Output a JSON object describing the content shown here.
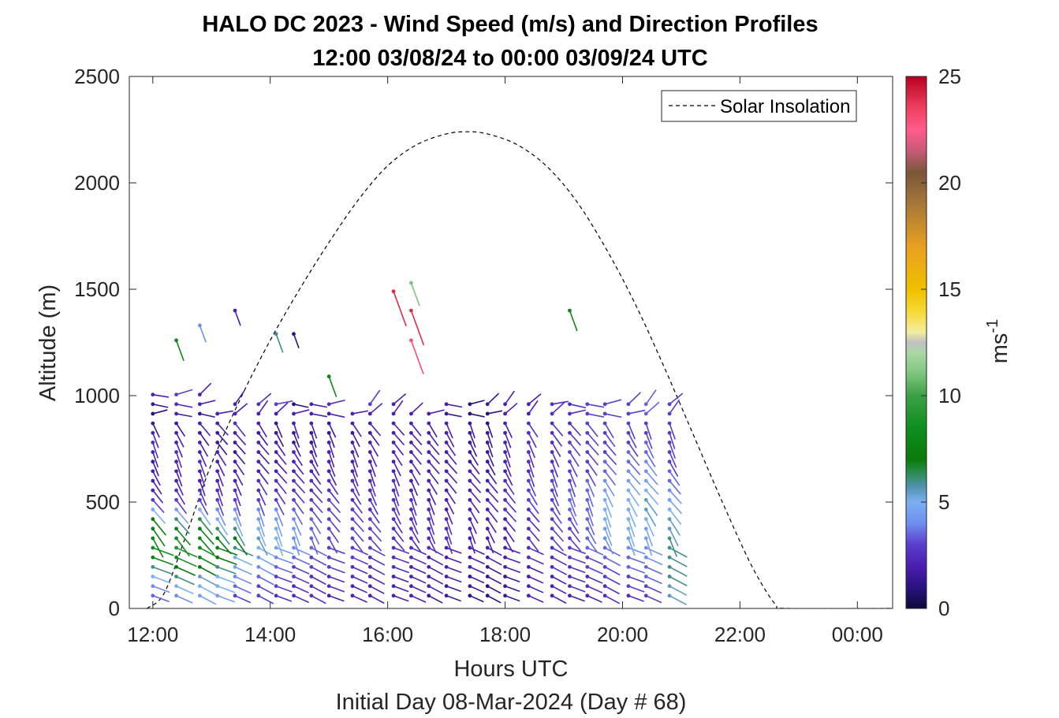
{
  "chart_data": {
    "type": "wind-barb-profile",
    "title_line1": "HALO DC 2023 - Wind Speed (m/s) and Direction Profiles",
    "title_line2": "12:00 03/08/24 to 00:00 03/09/24  UTC",
    "xlabel": "Hours UTC",
    "xlabel2": "Initial Day 08-Mar-2024 (Day # 68)",
    "ylabel": "Altitude (m)",
    "xlim": [
      11.6,
      24.6
    ],
    "ylim": [
      0,
      2500
    ],
    "x_ticks": [
      12,
      14,
      16,
      18,
      20,
      22,
      24
    ],
    "x_tick_labels": [
      "12:00",
      "14:00",
      "16:00",
      "18:00",
      "20:00",
      "22:00",
      "00:00"
    ],
    "y_ticks": [
      0,
      500,
      1000,
      1500,
      2000,
      2500
    ],
    "y_tick_labels": [
      "0",
      "500",
      "1000",
      "1500",
      "2000",
      "2500"
    ],
    "colorbar": {
      "label": "ms",
      "label_superscript": "-1",
      "range": [
        0,
        25
      ],
      "ticks": [
        0,
        5,
        10,
        15,
        20,
        25
      ],
      "tick_labels": [
        "0",
        "5",
        "10",
        "15",
        "20",
        "25"
      ],
      "stops": [
        [
          0,
          "#0b0b3a"
        ],
        [
          1,
          "#2a1280"
        ],
        [
          2,
          "#4b1fb0"
        ],
        [
          3,
          "#5b3dcc"
        ],
        [
          4,
          "#6f8ff0"
        ],
        [
          5,
          "#7ab0f0"
        ],
        [
          5.8,
          "#4d8fa8"
        ],
        [
          6.3,
          "#2e8f5a"
        ],
        [
          7,
          "#0a7a0a"
        ],
        [
          8.5,
          "#0f8f1f"
        ],
        [
          10,
          "#3aa045"
        ],
        [
          11,
          "#7dc47d"
        ],
        [
          12,
          "#a9d8a4"
        ],
        [
          12.5,
          "#c0c0c0"
        ],
        [
          13,
          "#f5eda0"
        ],
        [
          14,
          "#f5d830"
        ],
        [
          15,
          "#f0c000"
        ],
        [
          17,
          "#e8a020"
        ],
        [
          19,
          "#a67838"
        ],
        [
          20.5,
          "#7a5638"
        ],
        [
          21.5,
          "#c85a78"
        ],
        [
          22.5,
          "#ff5c8a"
        ],
        [
          23.5,
          "#f04060"
        ],
        [
          25,
          "#b80020"
        ]
      ]
    },
    "legend": {
      "label": "Solar Insolation",
      "placement": "top-right"
    },
    "solar_insolation": {
      "x": [
        11.9,
        12.2,
        12.6,
        13.0,
        13.5,
        14.0,
        14.5,
        15.0,
        15.5,
        16.0,
        16.5,
        17.0,
        17.35,
        17.7,
        18.2,
        18.7,
        19.2,
        19.7,
        20.2,
        20.7,
        21.2,
        21.7,
        22.2,
        22.6,
        22.8,
        24.6
      ],
      "y": [
        0,
        75,
        370,
        680,
        990,
        1260,
        1500,
        1720,
        1920,
        2080,
        2180,
        2230,
        2240,
        2230,
        2180,
        2080,
        1920,
        1700,
        1440,
        1140,
        820,
        500,
        200,
        20,
        0,
        0
      ]
    },
    "profiles": [
      {
        "time": 12.0,
        "speeds": [
          3.5,
          4,
          5,
          6,
          8,
          8.5,
          8,
          7.5,
          7,
          5,
          3,
          2,
          2,
          2,
          1.5,
          2,
          2.5,
          2,
          1.5,
          1,
          1.5,
          2
        ],
        "dir_offset": 250
      },
      {
        "time": 12.4,
        "speeds": [
          4,
          5,
          6,
          7,
          8.5,
          9,
          8.5,
          8,
          6,
          4.5,
          3,
          2.5,
          2,
          2,
          2,
          2.5,
          2,
          2,
          1.5,
          2,
          2.5,
          3
        ],
        "dir_offset": 245
      },
      {
        "time": 12.8,
        "speeds": [
          4.5,
          5,
          5.5,
          7,
          8,
          8.5,
          8,
          7.5,
          6.5,
          5,
          3,
          2.5,
          2,
          2,
          2.5,
          2,
          2,
          1.5,
          2,
          1.5,
          2,
          2
        ],
        "dir_offset": 240
      },
      {
        "time": 13.1,
        "speeds": [
          4.5,
          5,
          5,
          6,
          7,
          7.5,
          7,
          6,
          5,
          4,
          3,
          2.5,
          2,
          2,
          2,
          2,
          1.5,
          1.5,
          2,
          2
        ],
        "dir_offset": 235
      },
      {
        "time": 13.4,
        "speeds": [
          3,
          3.5,
          4,
          4.5,
          5,
          6,
          7,
          6,
          5,
          4,
          3,
          2.5,
          2,
          2,
          2,
          1.5,
          1.5,
          2,
          2.5,
          2,
          2
        ],
        "dir_offset": 230
      },
      {
        "time": 13.8,
        "speeds": [
          3,
          3,
          3.5,
          4,
          4.5,
          5,
          5.5,
          5,
          4.5,
          4,
          3,
          2.5,
          2.5,
          2,
          2,
          2,
          2,
          1.5,
          2,
          2,
          2.5
        ],
        "dir_offset": 225
      },
      {
        "time": 14.1,
        "speeds": [
          2.5,
          3,
          3,
          3.5,
          4,
          4.5,
          5,
          5,
          4.5,
          4,
          3,
          2.5,
          2.5,
          2,
          2,
          2,
          2,
          1.5,
          1.5,
          2,
          3
        ],
        "dir_offset": 220
      },
      {
        "time": 14.4,
        "speeds": [
          2.5,
          2.5,
          3,
          3,
          3.5,
          4,
          4,
          4.5,
          4,
          3.5,
          3,
          2.5,
          2.5,
          2,
          2,
          2,
          1.5,
          1.5,
          2,
          2,
          1
        ],
        "dir_offset": 215
      },
      {
        "time": 14.7,
        "speeds": [
          2.5,
          2.5,
          2.5,
          3,
          3,
          3.5,
          3.5,
          3.5,
          3.5,
          3,
          3,
          2.5,
          2.5,
          2,
          2,
          2,
          1.5,
          1.5,
          2,
          2,
          2
        ],
        "dir_offset": 210
      },
      {
        "time": 15.0,
        "speeds": [
          2,
          2.5,
          2.5,
          3,
          3,
          3,
          3,
          3,
          3,
          3,
          3,
          2.5,
          2.5,
          2,
          2,
          2,
          2,
          1.5,
          1.5,
          2,
          2.5
        ],
        "dir_offset": 205
      },
      {
        "time": 15.4,
        "speeds": [
          2,
          2,
          2.5,
          2.5,
          3,
          3,
          3,
          3,
          3,
          3,
          2.5,
          2.5,
          2.5,
          2,
          2,
          2,
          2,
          1.5,
          2,
          2
        ],
        "dir_offset": 200
      },
      {
        "time": 15.7,
        "speeds": [
          2,
          2,
          2.5,
          2.5,
          2.5,
          3,
          3,
          3,
          3,
          2.5,
          2.5,
          2.5,
          2.5,
          2,
          2,
          2,
          2,
          1.5,
          2,
          2,
          3
        ],
        "dir_offset": 195
      },
      {
        "time": 16.1,
        "speeds": [
          2,
          2,
          2,
          2.5,
          2.5,
          2.5,
          2.5,
          2.5,
          2.5,
          2.5,
          2.5,
          2.5,
          2.5,
          2,
          2,
          2,
          2,
          2,
          2,
          2,
          2
        ],
        "dir_offset": 190
      },
      {
        "time": 16.4,
        "speeds": [
          2,
          2,
          2,
          2,
          2.5,
          2.5,
          2.5,
          2.5,
          2.5,
          2.5,
          2.5,
          2,
          2,
          2,
          2,
          2,
          2,
          2,
          2,
          2
        ],
        "dir_offset": 185
      },
      {
        "time": 16.7,
        "speeds": [
          1.5,
          2,
          2,
          2,
          2,
          2.5,
          2.5,
          2.5,
          2.5,
          2.5,
          2,
          2,
          2,
          2,
          2,
          2,
          2,
          2,
          2,
          2
        ],
        "dir_offset": 180
      },
      {
        "time": 17.0,
        "speeds": [
          1.5,
          1.5,
          2,
          2,
          2,
          2,
          2.5,
          2.5,
          2.5,
          2,
          2,
          2,
          2,
          2,
          2,
          2,
          2,
          2,
          2,
          1.5,
          2
        ],
        "dir_offset": 175
      },
      {
        "time": 17.4,
        "speeds": [
          1,
          1.5,
          1.5,
          2,
          2,
          2,
          2,
          2,
          2,
          2,
          2,
          2,
          2,
          2,
          1.5,
          1.5,
          1.5,
          1.5,
          1.5,
          1,
          1
        ],
        "dir_offset": 170
      },
      {
        "time": 17.7,
        "speeds": [
          1,
          1,
          1.5,
          1.5,
          2,
          2,
          2,
          2,
          2,
          2,
          2,
          2,
          2,
          1.5,
          1.5,
          1.5,
          1.5,
          1.5,
          1,
          1,
          1.5
        ],
        "dir_offset": 165
      },
      {
        "time": 18.0,
        "speeds": [
          1.5,
          1.5,
          1.5,
          2,
          2,
          2,
          2,
          2,
          2,
          2.5,
          2.5,
          2.5,
          2.5,
          2,
          2,
          2,
          2,
          2,
          2,
          2,
          2
        ],
        "dir_offset": 160
      },
      {
        "time": 18.4,
        "speeds": [
          2,
          2,
          2,
          2,
          2.5,
          2.5,
          2.5,
          2.5,
          2.5,
          2.5,
          3,
          3,
          3,
          2.5,
          2.5,
          2.5,
          2.5,
          2.5,
          2.5,
          2,
          2
        ],
        "dir_offset": 155
      },
      {
        "time": 18.8,
        "speeds": [
          2,
          2,
          2,
          2.5,
          2.5,
          2.5,
          3,
          3,
          3,
          3,
          3,
          3,
          3,
          3,
          2.5,
          2.5,
          2.5,
          2.5,
          2.5,
          2.5,
          2.5
        ],
        "dir_offset": 150
      },
      {
        "time": 19.1,
        "speeds": [
          2,
          2.5,
          2.5,
          2.5,
          3,
          3,
          3,
          3,
          3,
          3.5,
          3.5,
          3.5,
          3,
          3,
          3,
          3,
          3,
          2.5,
          2.5,
          2.5,
          2.5
        ],
        "dir_offset": 145
      },
      {
        "time": 19.4,
        "speeds": [
          2,
          2.5,
          2.5,
          3,
          3,
          3.5,
          3.5,
          3.5,
          3.5,
          3.5,
          3.5,
          3.5,
          3.5,
          3,
          3,
          3,
          3,
          3,
          3,
          3,
          3
        ],
        "dir_offset": 140
      },
      {
        "time": 19.7,
        "speeds": [
          2.5,
          2.5,
          3,
          3,
          3.5,
          3.5,
          4,
          4.5,
          5,
          5,
          5,
          4.5,
          4,
          3.5,
          3.5,
          3,
          3,
          3,
          3,
          3,
          3
        ],
        "dir_offset": 135
      },
      {
        "time": 20.1,
        "speeds": [
          2.5,
          3,
          3,
          3.5,
          3.5,
          4,
          4.5,
          5,
          5,
          5,
          5,
          5,
          4.5,
          4,
          3.5,
          3.5,
          3,
          3,
          3,
          3,
          3
        ],
        "dir_offset": 130
      },
      {
        "time": 20.4,
        "speeds": [
          3,
          3,
          3.5,
          3.5,
          4,
          4,
          4.5,
          4.5,
          5,
          5.5,
          5.5,
          5,
          4.5,
          4,
          4,
          3.5,
          3.5,
          3,
          3,
          3.5,
          3.5
        ],
        "dir_offset": 125
      },
      {
        "time": 20.8,
        "speeds": [
          5.5,
          5.5,
          6,
          6,
          6,
          6,
          6,
          5.5,
          5.5,
          5,
          4.5,
          4,
          3.5,
          3.5,
          3,
          3,
          3,
          3,
          3,
          3,
          3
        ],
        "dir_offset": 120
      }
    ],
    "isolated_points": [
      {
        "time": 16.1,
        "alt": 1490,
        "speed": 24
      },
      {
        "time": 16.4,
        "alt": 1400,
        "speed": 24
      },
      {
        "time": 16.4,
        "alt": 1260,
        "speed": 23
      },
      {
        "time": 16.4,
        "alt": 1530,
        "speed": 11
      },
      {
        "time": 12.4,
        "alt": 1260,
        "speed": 8
      },
      {
        "time": 15.0,
        "alt": 1090,
        "speed": 8
      },
      {
        "time": 19.1,
        "alt": 1400,
        "speed": 8
      },
      {
        "time": 14.1,
        "alt": 1290,
        "speed": 6
      },
      {
        "time": 14.4,
        "alt": 1290,
        "speed": 1
      },
      {
        "time": 13.4,
        "alt": 1400,
        "speed": 2
      },
      {
        "time": 12.8,
        "alt": 1330,
        "speed": 4
      }
    ]
  }
}
